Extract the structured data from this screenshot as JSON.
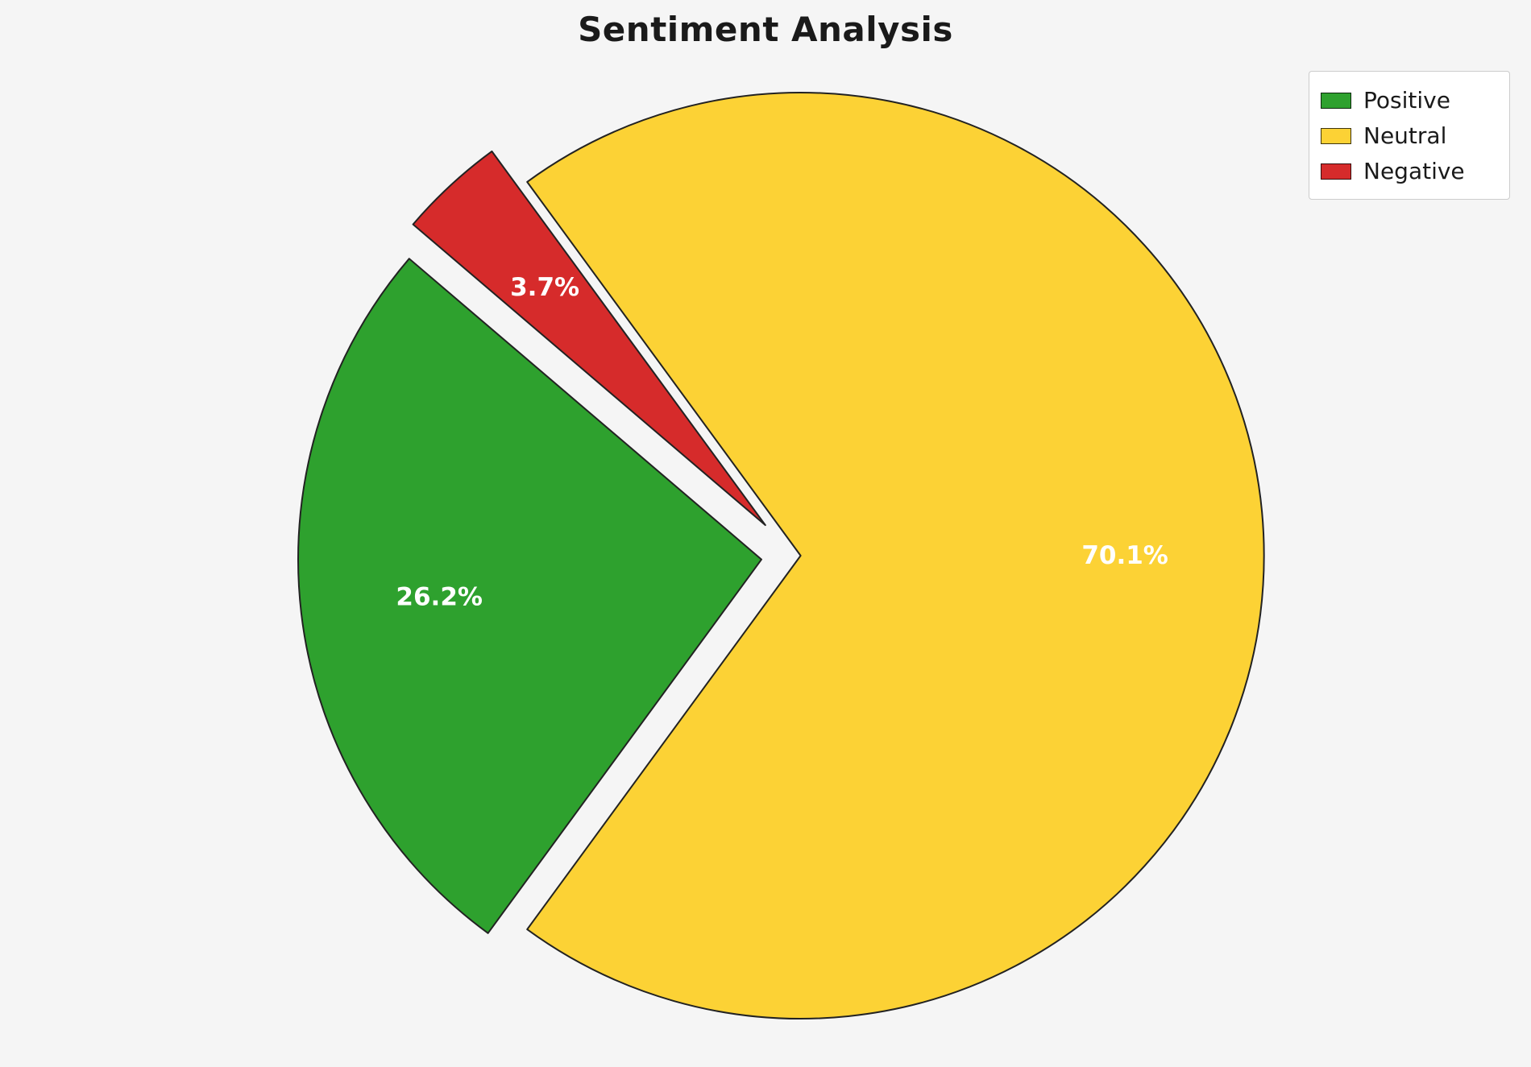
{
  "title": "Sentiment Analysis",
  "colors": {
    "background": "#f5f5f5",
    "wedge_edge": "#222222",
    "pct_text": "#ffffff",
    "legend_bg": "#ffffff",
    "legend_border": "#cccccc"
  },
  "chart_data": {
    "type": "pie",
    "title": "Sentiment Analysis",
    "slices": [
      {
        "label": "Positive",
        "value": 26.2,
        "pct_label": "26.2%",
        "color": "#2ea12e",
        "explode": 0.07
      },
      {
        "label": "Neutral",
        "value": 70.1,
        "pct_label": "70.1%",
        "color": "#fcd235",
        "explode": 0.015
      },
      {
        "label": "Negative",
        "value": 3.7,
        "pct_label": "3.7%",
        "color": "#d62b2b",
        "explode": 0.09
      }
    ],
    "start_angle": 139.5,
    "counterclockwise": true,
    "pct_distance": 0.7,
    "legend_position": "upper right",
    "legend_entries": [
      "Positive",
      "Neutral",
      "Negative"
    ]
  }
}
